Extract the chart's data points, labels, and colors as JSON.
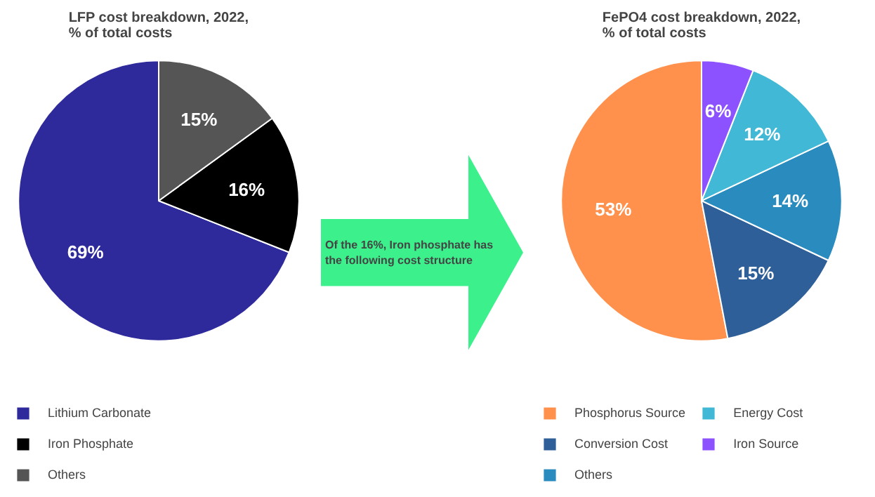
{
  "chart_data": [
    {
      "type": "pie",
      "title": "LFP cost breakdown, 2022,\n% of total costs",
      "categories": [
        "Lithium Carbonate",
        "Iron Phosphate",
        "Others"
      ],
      "values": [
        69,
        16,
        15
      ],
      "colors": [
        "#2e2a9c",
        "#000000",
        "#555555"
      ],
      "value_labels": [
        "69%",
        "16%",
        "15%"
      ],
      "legend": "bottom"
    },
    {
      "type": "other",
      "annotations": [
        "Of the 16%, Iron phosphate has the following cost structure"
      ]
    },
    {
      "type": "pie",
      "title": "FePO4 cost breakdown, 2022,\n% of total costs",
      "categories": [
        "Phosphorus Source",
        "Conversion Cost",
        "Others",
        "Energy Cost",
        "Iron Source"
      ],
      "values": [
        53,
        15,
        14,
        12,
        6
      ],
      "colors": [
        "#ff914d",
        "#2f5f98",
        "#2a8bbf",
        "#41b8d5",
        "#8c52ff"
      ],
      "value_labels": [
        "53%",
        "15%",
        "14%",
        "12%",
        "6%"
      ],
      "legend": "bottom"
    }
  ]
}
